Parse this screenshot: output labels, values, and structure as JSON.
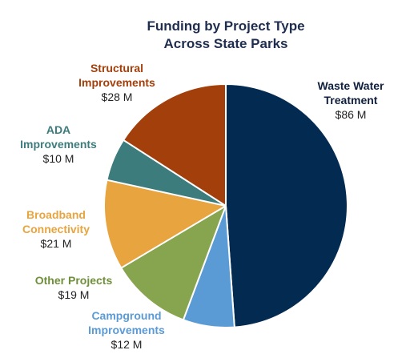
{
  "chart_data": {
    "type": "pie",
    "title_lines": [
      "Funding by Project Type",
      "Across State Parks"
    ],
    "slices": [
      {
        "name_lines": [
          "Waste Water",
          "Treatment"
        ],
        "value": 86,
        "value_label": "$86 M",
        "color": "#032b52",
        "label_color": "#0f1f3d"
      },
      {
        "name_lines": [
          "Campground",
          "Improvements"
        ],
        "value": 12,
        "value_label": "$12 M",
        "color": "#5b9bd5",
        "label_color": "#5b9bd5"
      },
      {
        "name_lines": [
          "Other Projects"
        ],
        "value": 19,
        "value_label": "$19 M",
        "color": "#86a54e",
        "label_color": "#6f8f3a"
      },
      {
        "name_lines": [
          "Broadband",
          "Connectivity"
        ],
        "value": 21,
        "value_label": "$21 M",
        "color": "#e8a43f",
        "label_color": "#e8a43f"
      },
      {
        "name_lines": [
          "ADA",
          "Improvements"
        ],
        "value": 10,
        "value_label": "$10 M",
        "color": "#3c7c7d",
        "label_color": "#3c7c7d"
      },
      {
        "name_lines": [
          "Structural",
          "Improvements"
        ],
        "value": 28,
        "value_label": "$28 M",
        "color": "#a33f0b",
        "label_color": "#a33f0b"
      }
    ]
  }
}
